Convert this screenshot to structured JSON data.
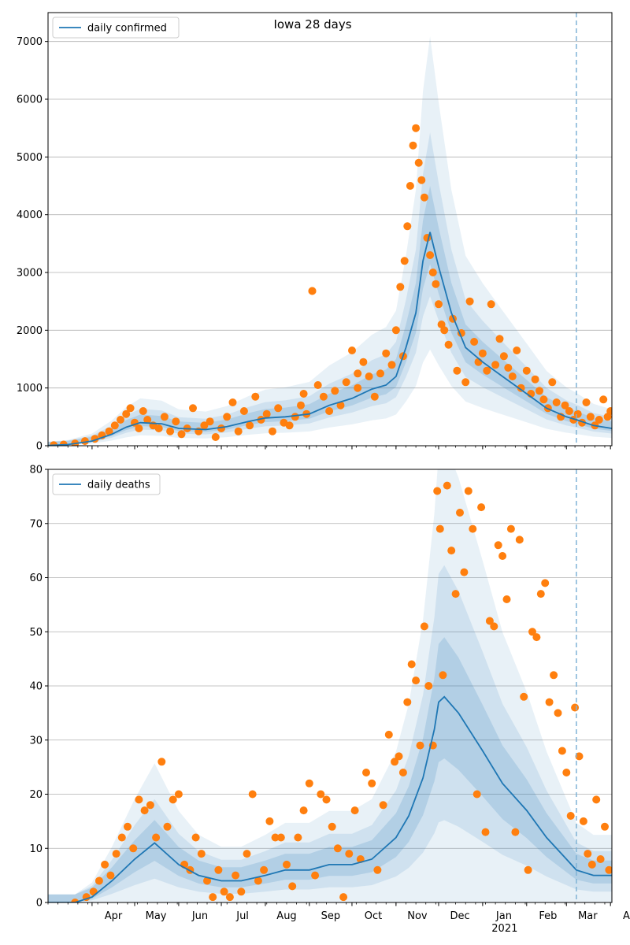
{
  "chart_data": [
    {
      "type": "line",
      "title": "Iowa 28 days",
      "legend": {
        "label": "daily confirmed",
        "placement": "top-left"
      },
      "ylim": [
        0,
        7500
      ],
      "yticks": [
        0,
        1000,
        2000,
        3000,
        4000,
        5000,
        6000,
        7000
      ],
      "grid": "y",
      "colors": {
        "line": "#1f77b4",
        "points": "#ff7f0e",
        "band": "#1f77b4",
        "vline": "#7fb2d5"
      },
      "x_start": "2020-03-01",
      "x_end": "2021-04-02",
      "forecast_start": "2021-03-08",
      "series": [
        {
          "name": "daily confirmed",
          "role": "median",
          "x": [
            "2020-03-01",
            "2020-03-15",
            "2020-04-01",
            "2020-04-15",
            "2020-04-25",
            "2020-05-05",
            "2020-05-20",
            "2020-06-01",
            "2020-06-20",
            "2020-07-05",
            "2020-07-20",
            "2020-08-01",
            "2020-08-15",
            "2020-09-01",
            "2020-09-15",
            "2020-10-01",
            "2020-10-15",
            "2020-10-25",
            "2020-11-01",
            "2020-11-08",
            "2020-11-15",
            "2020-11-20",
            "2020-11-25",
            "2020-12-01",
            "2020-12-10",
            "2020-12-20",
            "2021-01-01",
            "2021-01-15",
            "2021-02-01",
            "2021-02-15",
            "2021-03-01",
            "2021-03-08",
            "2021-03-20",
            "2021-04-02"
          ],
          "y": [
            5,
            20,
            80,
            200,
            320,
            400,
            380,
            300,
            280,
            330,
            420,
            480,
            500,
            550,
            700,
            820,
            980,
            1050,
            1200,
            1700,
            2300,
            3200,
            3700,
            3100,
            2300,
            1700,
            1450,
            1200,
            900,
            650,
            500,
            450,
            350,
            300
          ]
        },
        {
          "name": "observed",
          "role": "points",
          "x": [
            "2020-03-05",
            "2020-03-12",
            "2020-03-20",
            "2020-03-27",
            "2020-04-03",
            "2020-04-08",
            "2020-04-13",
            "2020-04-17",
            "2020-04-21",
            "2020-04-25",
            "2020-04-28",
            "2020-05-01",
            "2020-05-04",
            "2020-05-07",
            "2020-05-10",
            "2020-05-14",
            "2020-05-18",
            "2020-05-22",
            "2020-05-26",
            "2020-05-30",
            "2020-06-03",
            "2020-06-07",
            "2020-06-11",
            "2020-06-15",
            "2020-06-19",
            "2020-06-23",
            "2020-06-27",
            "2020-07-01",
            "2020-07-05",
            "2020-07-09",
            "2020-07-13",
            "2020-07-17",
            "2020-07-21",
            "2020-07-25",
            "2020-07-29",
            "2020-08-02",
            "2020-08-06",
            "2020-08-10",
            "2020-08-14",
            "2020-08-18",
            "2020-08-22",
            "2020-08-26",
            "2020-08-30",
            "2020-09-03",
            "2020-09-07",
            "2020-09-11",
            "2020-09-15",
            "2020-09-19",
            "2020-09-23",
            "2020-09-27",
            "2020-10-01",
            "2020-10-05",
            "2020-10-09",
            "2020-10-13",
            "2020-10-17",
            "2020-10-21",
            "2020-10-25",
            "2020-10-29",
            "2020-11-01",
            "2020-11-04",
            "2020-11-07",
            "2020-11-09",
            "2020-11-11",
            "2020-11-13",
            "2020-11-15",
            "2020-11-17",
            "2020-11-19",
            "2020-11-21",
            "2020-11-23",
            "2020-11-25",
            "2020-11-27",
            "2020-11-29",
            "2020-12-01",
            "2020-12-03",
            "2020-12-05",
            "2020-12-08",
            "2020-12-11",
            "2020-12-14",
            "2020-12-17",
            "2020-12-20",
            "2020-12-23",
            "2020-12-26",
            "2020-12-29",
            "2021-01-01",
            "2021-01-04",
            "2021-01-07",
            "2021-01-10",
            "2021-01-13",
            "2021-01-16",
            "2021-01-19",
            "2021-01-22",
            "2021-01-25",
            "2021-01-28",
            "2021-02-01",
            "2021-02-04",
            "2021-02-07",
            "2021-02-10",
            "2021-02-13",
            "2021-02-16",
            "2021-02-19",
            "2021-02-22",
            "2021-02-25",
            "2021-02-28",
            "2021-03-03",
            "2021-03-06",
            "2021-03-09",
            "2021-03-12",
            "2021-03-15",
            "2021-03-18",
            "2021-03-21",
            "2021-03-24",
            "2021-03-27",
            "2021-03-30",
            "2021-04-01",
            "2020-09-03",
            "2020-08-28",
            "2020-10-05",
            "2020-11-06"
          ],
          "y": [
            10,
            20,
            40,
            80,
            120,
            180,
            250,
            350,
            450,
            550,
            650,
            400,
            300,
            600,
            450,
            350,
            300,
            500,
            250,
            420,
            200,
            300,
            650,
            250,
            350,
            420,
            150,
            300,
            500,
            750,
            250,
            600,
            350,
            850,
            450,
            550,
            250,
            650,
            400,
            350,
            500,
            700,
            550,
            2680,
            1050,
            850,
            600,
            950,
            700,
            1100,
            1650,
            1000,
            1450,
            1200,
            850,
            1250,
            1600,
            1400,
            2000,
            2750,
            3200,
            3800,
            4500,
            5200,
            5500,
            4900,
            4600,
            4300,
            3600,
            3300,
            3000,
            2800,
            2450,
            2100,
            2000,
            1750,
            2200,
            1300,
            1950,
            1100,
            2500,
            1800,
            1450,
            1600,
            1300,
            2450,
            1400,
            1850,
            1550,
            1350,
            1200,
            1650,
            1000,
            1300,
            900,
            1150,
            950,
            800,
            650,
            1100,
            750,
            500,
            700,
            600,
            450,
            550,
            400,
            750,
            500,
            350,
            450,
            800,
            500,
            600,
            2680,
            900,
            1250,
            1550
          ]
        }
      ]
    },
    {
      "type": "line",
      "title": "",
      "legend": {
        "label": "daily deaths",
        "placement": "top-left"
      },
      "ylim": [
        0,
        80
      ],
      "yticks": [
        0,
        10,
        20,
        30,
        40,
        50,
        60,
        70,
        80
      ],
      "grid": "y",
      "colors": {
        "line": "#1f77b4",
        "points": "#ff7f0e",
        "band": "#1f77b4",
        "vline": "#7fb2d5"
      },
      "x_start": "2020-03-01",
      "x_end": "2021-04-02",
      "forecast_start": "2021-03-08",
      "xtick_labels": [
        "Apr",
        "May",
        "Jun",
        "Jul",
        "Aug",
        "Sep",
        "Oct",
        "Nov",
        "Dec",
        "Jan",
        "Feb",
        "Mar",
        "Apr"
      ],
      "xtick_dates": [
        "2020-04-01",
        "2020-05-01",
        "2020-06-01",
        "2020-07-01",
        "2020-08-01",
        "2020-09-01",
        "2020-10-01",
        "2020-11-01",
        "2020-12-01",
        "2021-01-01",
        "2021-02-01",
        "2021-03-01",
        "2021-04-01"
      ],
      "year_label": "2021",
      "series": [
        {
          "name": "daily deaths",
          "role": "median",
          "x": [
            "2020-03-01",
            "2020-03-20",
            "2020-04-01",
            "2020-04-15",
            "2020-05-01",
            "2020-05-15",
            "2020-06-01",
            "2020-06-15",
            "2020-07-01",
            "2020-07-15",
            "2020-08-01",
            "2020-08-15",
            "2020-09-01",
            "2020-09-15",
            "2020-10-01",
            "2020-10-15",
            "2020-11-01",
            "2020-11-10",
            "2020-11-20",
            "2020-11-28",
            "2020-12-01",
            "2020-12-05",
            "2020-12-15",
            "2021-01-01",
            "2021-01-15",
            "2021-02-01",
            "2021-02-15",
            "2021-03-01",
            "2021-03-08",
            "2021-03-20",
            "2021-04-02"
          ],
          "y": [
            0,
            0,
            1,
            4,
            8,
            11,
            7,
            5,
            4,
            4,
            5,
            6,
            6,
            7,
            7,
            8,
            12,
            16,
            23,
            32,
            37,
            38,
            35,
            28,
            22,
            17,
            12,
            8,
            6,
            5,
            5
          ]
        },
        {
          "name": "observed",
          "role": "points",
          "x": [
            "2020-03-20",
            "2020-03-28",
            "2020-04-02",
            "2020-04-06",
            "2020-04-10",
            "2020-04-14",
            "2020-04-18",
            "2020-04-22",
            "2020-04-26",
            "2020-04-30",
            "2020-05-04",
            "2020-05-08",
            "2020-05-12",
            "2020-05-16",
            "2020-05-20",
            "2020-05-24",
            "2020-05-28",
            "2020-06-01",
            "2020-06-05",
            "2020-06-09",
            "2020-06-13",
            "2020-06-17",
            "2020-06-21",
            "2020-06-25",
            "2020-06-29",
            "2020-07-03",
            "2020-07-07",
            "2020-07-11",
            "2020-07-15",
            "2020-07-19",
            "2020-07-23",
            "2020-07-27",
            "2020-07-31",
            "2020-08-04",
            "2020-08-08",
            "2020-08-12",
            "2020-08-16",
            "2020-08-20",
            "2020-08-24",
            "2020-08-28",
            "2020-09-01",
            "2020-09-05",
            "2020-09-09",
            "2020-09-13",
            "2020-09-17",
            "2020-09-21",
            "2020-09-25",
            "2020-09-29",
            "2020-10-03",
            "2020-10-07",
            "2020-10-11",
            "2020-10-15",
            "2020-10-19",
            "2020-10-23",
            "2020-10-27",
            "2020-10-31",
            "2020-11-03",
            "2020-11-06",
            "2020-11-09",
            "2020-11-12",
            "2020-11-15",
            "2020-11-18",
            "2020-11-21",
            "2020-11-24",
            "2020-11-27",
            "2020-11-30",
            "2020-12-02",
            "2020-12-04",
            "2020-12-07",
            "2020-12-10",
            "2020-12-13",
            "2020-12-16",
            "2020-12-19",
            "2020-12-22",
            "2020-12-25",
            "2020-12-28",
            "2020-12-31",
            "2021-01-03",
            "2021-01-06",
            "2021-01-09",
            "2021-01-12",
            "2021-01-15",
            "2021-01-18",
            "2021-01-21",
            "2021-01-24",
            "2021-01-27",
            "2021-01-30",
            "2021-02-02",
            "2021-02-05",
            "2021-02-08",
            "2021-02-11",
            "2021-02-14",
            "2021-02-17",
            "2021-02-20",
            "2021-02-23",
            "2021-02-26",
            "2021-03-01",
            "2021-03-04",
            "2021-03-07",
            "2021-03-10",
            "2021-03-13",
            "2021-03-16",
            "2021-03-19",
            "2021-03-22",
            "2021-03-25",
            "2021-03-28",
            "2021-03-31"
          ],
          "y": [
            0,
            1,
            2,
            4,
            7,
            5,
            9,
            12,
            14,
            10,
            19,
            17,
            18,
            12,
            26,
            14,
            19,
            20,
            7,
            6,
            12,
            9,
            4,
            1,
            6,
            2,
            1,
            5,
            2,
            9,
            20,
            4,
            6,
            15,
            12,
            12,
            7,
            3,
            12,
            17,
            22,
            5,
            20,
            19,
            14,
            10,
            1,
            9,
            17,
            8,
            24,
            22,
            6,
            18,
            31,
            26,
            27,
            24,
            37,
            44,
            41,
            29,
            51,
            40,
            29,
            76,
            69,
            42,
            77,
            65,
            57,
            72,
            61,
            76,
            69,
            20,
            73,
            13,
            52,
            51,
            66,
            64,
            56,
            69,
            13,
            67,
            38,
            6,
            50,
            49,
            57,
            59,
            37,
            42,
            35,
            28,
            24,
            16,
            36,
            27,
            15,
            9,
            7,
            19,
            8,
            14,
            6
          ]
        }
      ]
    }
  ]
}
